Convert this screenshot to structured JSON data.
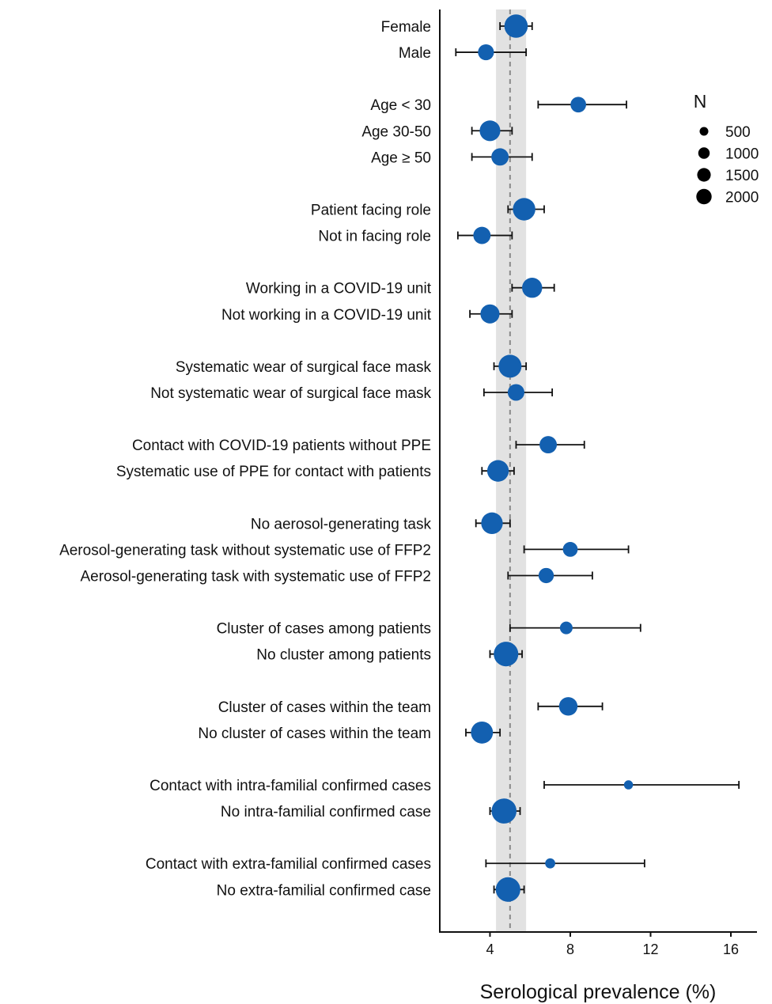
{
  "chart_data": {
    "type": "forest",
    "xlabel": "Serological prevalence (%)",
    "xlim": [
      1.5,
      17.3
    ],
    "xticks": [
      4,
      8,
      12,
      16
    ],
    "reference": {
      "value": 5.0,
      "band": [
        4.3,
        5.8
      ]
    },
    "legend": {
      "title": "N",
      "position": "top-right",
      "items": [
        {
          "label": "500",
          "n": 500
        },
        {
          "label": "1000",
          "n": 1000
        },
        {
          "label": "1500",
          "n": 1500
        },
        {
          "label": "2000",
          "n": 2000
        }
      ]
    },
    "colors": {
      "point": "#1360b0",
      "band": "#e2e2e2",
      "reference_line": "#8a8a8a",
      "errorbar": "#111111",
      "axis": "#111111"
    },
    "rows": [
      {
        "label": "Female",
        "row": 0,
        "estimate": 5.3,
        "lower": 4.5,
        "upper": 6.1,
        "n": 2200
      },
      {
        "label": "Male",
        "row": 1,
        "estimate": 3.8,
        "lower": 2.3,
        "upper": 5.8,
        "n": 800
      },
      {
        "label": "Age < 30",
        "row": 3,
        "estimate": 8.4,
        "lower": 6.4,
        "upper": 10.8,
        "n": 750
      },
      {
        "label": "Age 30-50",
        "row": 4,
        "estimate": 4.0,
        "lower": 3.1,
        "upper": 5.1,
        "n": 1600
      },
      {
        "label": "Age ≥ 50",
        "row": 5,
        "estimate": 4.5,
        "lower": 3.1,
        "upper": 6.1,
        "n": 1000
      },
      {
        "label": "Patient facing role",
        "row": 7,
        "estimate": 5.7,
        "lower": 4.9,
        "upper": 6.7,
        "n": 2000
      },
      {
        "label": "Not in facing role",
        "row": 8,
        "estimate": 3.6,
        "lower": 2.4,
        "upper": 5.1,
        "n": 1000
      },
      {
        "label": "Working in a COVID-19 unit",
        "row": 10,
        "estimate": 6.1,
        "lower": 5.1,
        "upper": 7.2,
        "n": 1500
      },
      {
        "label": "Not working in a COVID-19 unit",
        "row": 11,
        "estimate": 4.0,
        "lower": 3.0,
        "upper": 5.1,
        "n": 1300
      },
      {
        "label": "Systematic wear of surgical face mask",
        "row": 13,
        "estimate": 5.0,
        "lower": 4.2,
        "upper": 5.8,
        "n": 2100
      },
      {
        "label": "Not systematic wear of surgical face mask",
        "row": 14,
        "estimate": 5.3,
        "lower": 3.7,
        "upper": 7.1,
        "n": 900
      },
      {
        "label": "Contact with COVID-19 patients without PPE",
        "row": 16,
        "estimate": 6.9,
        "lower": 5.3,
        "upper": 8.7,
        "n": 1000
      },
      {
        "label": "Systematic use of PPE for contact with patients",
        "row": 17,
        "estimate": 4.4,
        "lower": 3.6,
        "upper": 5.2,
        "n": 1800
      },
      {
        "label": "No aerosol-generating task",
        "row": 19,
        "estimate": 4.1,
        "lower": 3.3,
        "upper": 5.0,
        "n": 1800
      },
      {
        "label": "Aerosol-generating task without systematic use of FFP2",
        "row": 20,
        "estimate": 8.0,
        "lower": 5.7,
        "upper": 10.9,
        "n": 650
      },
      {
        "label": "Aerosol-generating task with systematic use of FFP2",
        "row": 21,
        "estimate": 6.8,
        "lower": 4.9,
        "upper": 9.1,
        "n": 700
      },
      {
        "label": "Cluster of cases among patients",
        "row": 23,
        "estimate": 7.8,
        "lower": 5.0,
        "upper": 11.5,
        "n": 400
      },
      {
        "label": "No cluster among patients",
        "row": 24,
        "estimate": 4.8,
        "lower": 4.0,
        "upper": 5.6,
        "n": 2500
      },
      {
        "label": "Cluster of cases within the team",
        "row": 26,
        "estimate": 7.9,
        "lower": 6.4,
        "upper": 9.6,
        "n": 1200
      },
      {
        "label": "No cluster of cases within the team",
        "row": 27,
        "estimate": 3.6,
        "lower": 2.8,
        "upper": 4.5,
        "n": 1900
      },
      {
        "label": "Contact with intra-familial confirmed cases",
        "row": 29,
        "estimate": 10.9,
        "lower": 6.7,
        "upper": 16.4,
        "n": 120
      },
      {
        "label": "No intra-familial confirmed case",
        "row": 30,
        "estimate": 4.7,
        "lower": 4.0,
        "upper": 5.5,
        "n": 2600
      },
      {
        "label": "Contact with extra-familial confirmed cases",
        "row": 32,
        "estimate": 7.0,
        "lower": 3.8,
        "upper": 11.7,
        "n": 180
      },
      {
        "label": "No extra-familial confirmed case",
        "row": 33,
        "estimate": 4.9,
        "lower": 4.2,
        "upper": 5.7,
        "n": 2500
      }
    ]
  }
}
